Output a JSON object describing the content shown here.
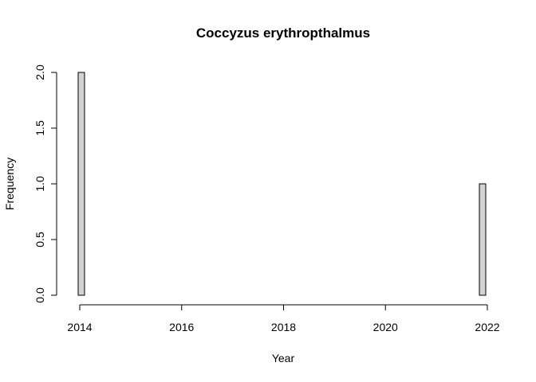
{
  "chart_data": {
    "type": "bar",
    "title": "Coccyzus erythropthalmus",
    "xlabel": "Year",
    "ylabel": "Frequency",
    "xlim": [
      2014,
      2022
    ],
    "ylim": [
      0,
      2
    ],
    "x_ticks": [
      2014,
      2016,
      2018,
      2020,
      2022
    ],
    "y_ticks": [
      "0.0",
      "0.5",
      "1.0",
      "1.5",
      "2.0"
    ],
    "bin_width": 0.125,
    "bins_start": [
      2014,
      2021.875
    ],
    "values": [
      2,
      1
    ],
    "bar_color": "#d3d3d3",
    "border_color": "#000000",
    "grid": false,
    "legend": "none"
  }
}
